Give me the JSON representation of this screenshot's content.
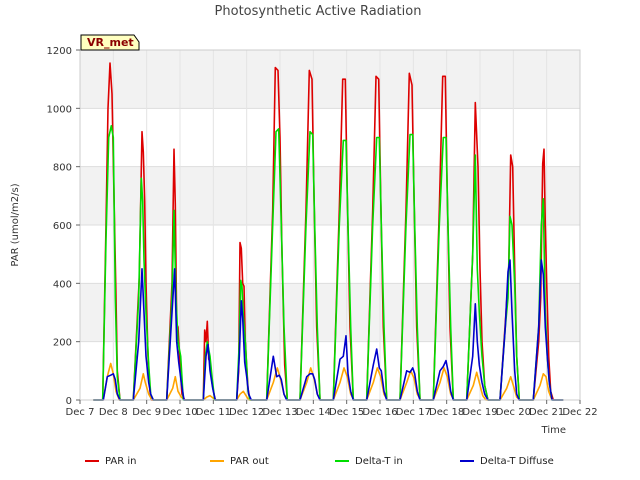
{
  "chart_data": {
    "type": "line",
    "title": "Photosynthetic Active Radiation",
    "xlabel": "Time",
    "ylabel": "PAR (umol/m2/s)",
    "badge": "VR_met",
    "ylim": [
      0,
      1200
    ],
    "xlim": [
      7,
      22
    ],
    "grid": true,
    "legend_position": "bottom",
    "x_tick_values": [
      7,
      8,
      9,
      10,
      11,
      12,
      13,
      14,
      15,
      16,
      17,
      18,
      19,
      20,
      21,
      22
    ],
    "x_tick_labels": [
      "Dec 7",
      "Dec 8",
      "Dec 9",
      "Dec 10",
      "Dec 11",
      "Dec 12",
      "Dec 13",
      "Dec 14",
      "Dec 15",
      "Dec 16",
      "Dec 17",
      "Dec 18",
      "Dec 19",
      "Dec 20",
      "Dec 21",
      "Dec 22"
    ],
    "y_ticks": [
      0,
      200,
      400,
      600,
      800,
      1000,
      1200
    ],
    "series": [
      {
        "name": "PAR in",
        "color": "#dd0000",
        "x": [
          7.4,
          7.68,
          7.78,
          7.84,
          7.9,
          7.96,
          8.02,
          8.08,
          8.12,
          8.2,
          8.6,
          8.78,
          8.86,
          8.9,
          8.94,
          8.98,
          9.04,
          9.1,
          9.14,
          9.22,
          9.6,
          9.76,
          9.82,
          9.86,
          9.9,
          9.94,
          10.0,
          10.06,
          10.14,
          10.7,
          10.74,
          10.78,
          10.82,
          10.86,
          10.9,
          10.96,
          11.02,
          11.06,
          11.7,
          11.76,
          11.8,
          11.84,
          11.88,
          11.92,
          11.96,
          12.04,
          12.1,
          12.6,
          12.78,
          12.86,
          12.94,
          13.0,
          13.06,
          13.14,
          13.22,
          13.6,
          13.78,
          13.88,
          13.96,
          14.02,
          14.1,
          14.2,
          14.6,
          14.78,
          14.88,
          14.96,
          15.02,
          15.1,
          15.2,
          15.6,
          15.78,
          15.88,
          15.96,
          16.02,
          16.1,
          16.2,
          16.6,
          16.78,
          16.88,
          16.96,
          17.02,
          17.1,
          17.2,
          17.6,
          17.78,
          17.88,
          17.96,
          18.02,
          18.1,
          18.2,
          18.6,
          18.78,
          18.86,
          18.94,
          19.0,
          19.06,
          19.14,
          19.24,
          19.6,
          19.78,
          19.86,
          19.92,
          19.98,
          20.04,
          20.1,
          20.18,
          20.6,
          20.76,
          20.82,
          20.88,
          20.92,
          20.96,
          21.0,
          21.06,
          21.12,
          21.2,
          21.5
        ],
        "y": [
          0,
          0,
          600,
          1000,
          1155,
          1050,
          700,
          350,
          100,
          0,
          0,
          420,
          920,
          850,
          680,
          400,
          150,
          30,
          0,
          0,
          0,
          400,
          860,
          670,
          260,
          250,
          120,
          20,
          0,
          0,
          240,
          200,
          270,
          140,
          130,
          60,
          20,
          0,
          0,
          100,
          540,
          520,
          400,
          390,
          200,
          40,
          0,
          0,
          650,
          1140,
          1130,
          900,
          500,
          120,
          0,
          0,
          650,
          1130,
          1100,
          700,
          250,
          0,
          0,
          650,
          1100,
          1100,
          700,
          250,
          0,
          0,
          650,
          1110,
          1100,
          700,
          250,
          0,
          0,
          650,
          1120,
          1080,
          700,
          250,
          0,
          0,
          650,
          1110,
          1110,
          700,
          250,
          0,
          0,
          500,
          1020,
          800,
          450,
          200,
          50,
          0,
          0,
          300,
          450,
          840,
          800,
          450,
          150,
          0,
          0,
          200,
          350,
          810,
          860,
          600,
          400,
          150,
          30,
          0,
          0
        ]
      },
      {
        "name": "PAR out",
        "color": "#ffa500",
        "x": [
          7.4,
          7.7,
          7.82,
          7.92,
          8.0,
          8.08,
          8.18,
          8.6,
          8.8,
          8.9,
          8.96,
          9.06,
          9.16,
          9.6,
          9.78,
          9.86,
          9.94,
          10.04,
          10.14,
          10.7,
          10.8,
          10.9,
          10.98,
          11.06,
          11.7,
          11.8,
          11.9,
          11.98,
          12.06,
          12.6,
          12.8,
          12.92,
          13.02,
          13.12,
          13.22,
          13.6,
          13.8,
          13.92,
          14.02,
          14.12,
          14.22,
          14.6,
          14.8,
          14.92,
          15.02,
          15.12,
          15.22,
          15.6,
          15.8,
          15.92,
          16.02,
          16.12,
          16.22,
          16.6,
          16.8,
          16.92,
          17.02,
          17.12,
          17.22,
          17.6,
          17.8,
          17.92,
          18.02,
          18.12,
          18.22,
          18.6,
          18.8,
          18.9,
          18.98,
          19.08,
          19.18,
          19.6,
          19.8,
          19.92,
          20.0,
          20.1,
          20.2,
          20.6,
          20.8,
          20.9,
          20.98,
          21.06,
          21.16
        ],
        "y": [
          0,
          0,
          80,
          125,
          90,
          30,
          0,
          0,
          40,
          90,
          60,
          20,
          0,
          0,
          40,
          80,
          30,
          10,
          0,
          0,
          10,
          15,
          8,
          0,
          0,
          20,
          30,
          15,
          0,
          0,
          60,
          110,
          70,
          20,
          0,
          0,
          60,
          110,
          75,
          20,
          0,
          0,
          60,
          110,
          80,
          20,
          0,
          0,
          60,
          110,
          80,
          20,
          0,
          0,
          60,
          100,
          75,
          20,
          0,
          0,
          60,
          110,
          80,
          20,
          0,
          0,
          50,
          95,
          60,
          15,
          0,
          0,
          40,
          80,
          50,
          10,
          0,
          0,
          50,
          90,
          80,
          30,
          0
        ]
      },
      {
        "name": "Delta-T in",
        "color": "#00dd00",
        "x": [
          7.4,
          7.68,
          7.78,
          7.86,
          7.94,
          8.0,
          8.06,
          8.12,
          8.2,
          8.6,
          8.76,
          8.84,
          8.88,
          8.92,
          8.98,
          9.06,
          9.12,
          9.2,
          9.6,
          9.76,
          9.82,
          9.88,
          9.94,
          10.02,
          10.1,
          10.7,
          10.76,
          10.82,
          10.9,
          10.96,
          11.04,
          11.7,
          11.78,
          11.82,
          11.86,
          11.9,
          11.96,
          12.04,
          12.1,
          12.6,
          12.78,
          12.88,
          12.96,
          13.04,
          13.12,
          13.22,
          13.6,
          13.78,
          13.9,
          13.98,
          14.04,
          14.12,
          14.2,
          14.6,
          14.78,
          14.9,
          14.98,
          15.04,
          15.12,
          15.2,
          15.6,
          15.78,
          15.9,
          15.98,
          16.04,
          16.12,
          16.2,
          16.6,
          16.78,
          16.9,
          16.98,
          17.04,
          17.12,
          17.2,
          17.6,
          17.78,
          17.9,
          17.98,
          18.04,
          18.12,
          18.2,
          18.6,
          18.78,
          18.86,
          18.92,
          18.98,
          19.06,
          19.14,
          19.24,
          19.6,
          19.76,
          19.84,
          19.9,
          19.96,
          20.04,
          20.1,
          20.18,
          20.6,
          20.76,
          20.84,
          20.9,
          20.96,
          21.02,
          21.08,
          21.16,
          21.5
        ],
        "y": [
          0,
          0,
          550,
          900,
          940,
          900,
          350,
          80,
          0,
          0,
          350,
          760,
          680,
          480,
          300,
          120,
          20,
          0,
          0,
          350,
          650,
          350,
          200,
          150,
          0,
          0,
          150,
          200,
          150,
          80,
          0,
          0,
          200,
          410,
          390,
          290,
          200,
          30,
          0,
          0,
          600,
          920,
          930,
          600,
          250,
          0,
          0,
          600,
          920,
          910,
          600,
          250,
          0,
          0,
          600,
          890,
          890,
          600,
          250,
          0,
          0,
          600,
          900,
          900,
          600,
          250,
          0,
          0,
          600,
          910,
          910,
          600,
          250,
          0,
          0,
          600,
          900,
          900,
          600,
          250,
          0,
          0,
          500,
          840,
          450,
          300,
          150,
          50,
          0,
          0,
          250,
          350,
          630,
          600,
          400,
          150,
          0,
          0,
          250,
          600,
          690,
          300,
          150,
          60,
          0,
          0
        ]
      },
      {
        "name": "Delta-T Diffuse",
        "color": "#0000cc",
        "x": [
          7.4,
          7.7,
          7.82,
          7.92,
          8.0,
          8.06,
          8.12,
          8.2,
          8.6,
          8.76,
          8.86,
          8.92,
          8.98,
          9.06,
          9.12,
          9.2,
          9.6,
          9.76,
          9.84,
          9.9,
          9.96,
          10.04,
          10.12,
          10.7,
          10.78,
          10.84,
          10.9,
          10.98,
          11.06,
          11.7,
          11.78,
          11.84,
          11.88,
          11.94,
          12.0,
          12.06,
          12.14,
          12.6,
          12.8,
          12.9,
          12.98,
          13.04,
          13.12,
          13.2,
          13.6,
          13.8,
          13.9,
          13.98,
          14.04,
          14.12,
          14.2,
          14.6,
          14.8,
          14.9,
          14.98,
          15.04,
          15.12,
          15.2,
          15.6,
          15.8,
          15.9,
          15.98,
          16.04,
          16.12,
          16.2,
          16.6,
          16.8,
          16.9,
          16.98,
          17.04,
          17.12,
          17.2,
          17.6,
          17.8,
          17.9,
          17.98,
          18.04,
          18.12,
          18.2,
          18.6,
          18.78,
          18.86,
          18.92,
          18.98,
          19.06,
          19.14,
          19.24,
          19.6,
          19.76,
          19.84,
          19.9,
          19.96,
          20.04,
          20.1,
          20.18,
          20.6,
          20.76,
          20.84,
          20.9,
          20.96,
          21.02,
          21.08,
          21.16,
          21.5
        ],
        "y": [
          0,
          0,
          80,
          85,
          90,
          70,
          20,
          0,
          0,
          200,
          450,
          300,
          150,
          60,
          20,
          0,
          0,
          300,
          450,
          200,
          130,
          60,
          0,
          0,
          150,
          190,
          100,
          40,
          0,
          0,
          150,
          340,
          280,
          130,
          80,
          20,
          0,
          0,
          150,
          80,
          85,
          70,
          20,
          0,
          0,
          80,
          90,
          90,
          70,
          20,
          0,
          0,
          140,
          150,
          220,
          90,
          30,
          0,
          0,
          120,
          175,
          110,
          100,
          30,
          0,
          0,
          100,
          95,
          110,
          90,
          30,
          0,
          0,
          100,
          115,
          135,
          100,
          30,
          0,
          0,
          150,
          330,
          200,
          120,
          60,
          20,
          0,
          0,
          250,
          440,
          480,
          300,
          100,
          20,
          0,
          0,
          250,
          480,
          430,
          250,
          150,
          60,
          0,
          0
        ]
      }
    ]
  }
}
